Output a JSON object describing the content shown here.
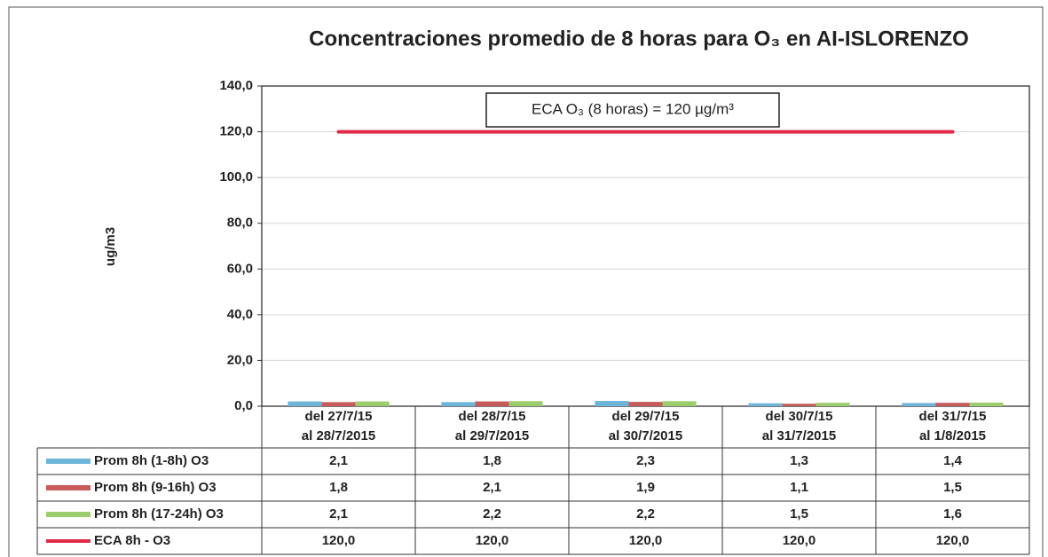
{
  "chart_data": {
    "type": "bar",
    "title": "Concentraciones promedio de 8 horas para O₃ en AI-ISLORENZO",
    "y_label": "ug/m3",
    "annotation": "ECA O₃ (8 horas) = 120 µg/m³",
    "categories": [
      [
        "del 27/7/15",
        "al 28/7/2015"
      ],
      [
        "del 28/7/15",
        "al 29/7/2015"
      ],
      [
        "del 29/7/15",
        "al 30/7/2015"
      ],
      [
        "del 30/7/15",
        "al 31/7/2015"
      ],
      [
        "del 31/7/15",
        "al 1/8/2015"
      ]
    ],
    "series": [
      {
        "name": "Prom 8h (1-8h) O3",
        "color": "#6db6d9",
        "type": "bar",
        "values": [
          2.1,
          1.8,
          2.3,
          1.3,
          1.4
        ],
        "value_labels": [
          "2,1",
          "1,8",
          "2,3",
          "1,3",
          "1,4"
        ]
      },
      {
        "name": "Prom 8h (9-16h) O3",
        "color": "#c75b5b",
        "type": "bar",
        "values": [
          1.8,
          2.1,
          1.9,
          1.1,
          1.5
        ],
        "value_labels": [
          "1,8",
          "2,1",
          "1,9",
          "1,1",
          "1,5"
        ]
      },
      {
        "name": "Prom 8h (17-24h) O3",
        "color": "#9ccd6c",
        "type": "bar",
        "values": [
          2.1,
          2.2,
          2.2,
          1.5,
          1.6
        ],
        "value_labels": [
          "2,1",
          "2,2",
          "2,2",
          "1,5",
          "1,6"
        ]
      },
      {
        "name": "ECA 8h - O3",
        "color": "#e02a48",
        "type": "line",
        "values": [
          120,
          120,
          120,
          120,
          120
        ],
        "value_labels": [
          "120,0",
          "120,0",
          "120,0",
          "120,0",
          "120,0"
        ]
      }
    ],
    "ylim": [
      0,
      140
    ],
    "yticks": [
      {
        "value": 0,
        "label": "0,0"
      },
      {
        "value": 20,
        "label": "20,0"
      },
      {
        "value": 40,
        "label": "40,0"
      },
      {
        "value": 60,
        "label": "60,0"
      },
      {
        "value": 80,
        "label": "80,0"
      },
      {
        "value": 100,
        "label": "100,0"
      },
      {
        "value": 120,
        "label": "120,0"
      },
      {
        "value": 140,
        "label": "140,0"
      }
    ],
    "grid": true
  }
}
